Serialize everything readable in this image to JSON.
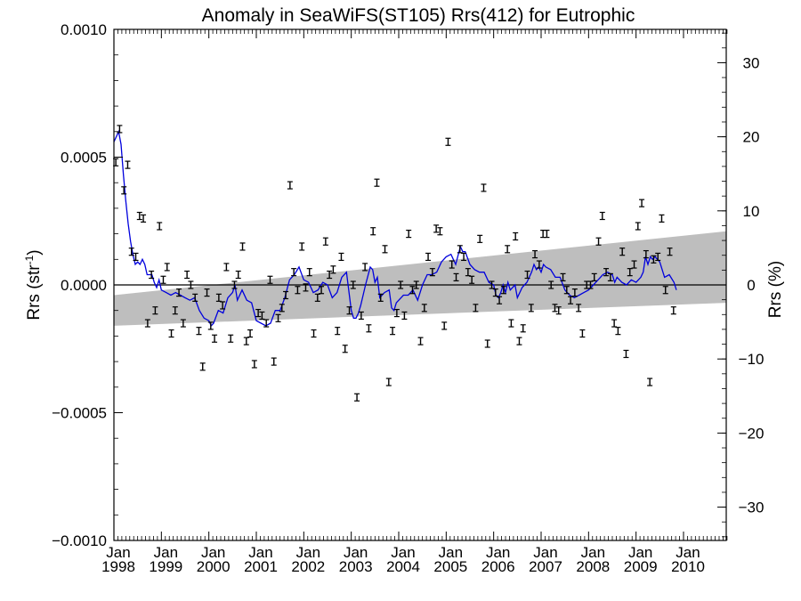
{
  "chart_data": {
    "type": "scatter",
    "title": "Anomaly in SeaWiFS(ST105) Rrs(412) for Eutrophic",
    "ylabel_left_main": "Rrs (str",
    "ylabel_left_sup": "-1",
    "ylabel_left_end": ")",
    "ylabel_right": "Rrs (%)",
    "xlim": [
      1998.0,
      2010.9
    ],
    "ylim": [
      -0.001,
      0.001
    ],
    "y2lim": [
      -34.5,
      34.5
    ],
    "yticks": [
      {
        "value": 0.001,
        "label": "0.0010"
      },
      {
        "value": 0.0005,
        "label": "0.0005"
      },
      {
        "value": 0.0,
        "label": "0.0000"
      },
      {
        "value": -0.0005,
        "label": "−0.0005"
      },
      {
        "value": -0.001,
        "label": "−0.0010"
      }
    ],
    "y2ticks": [
      {
        "value": 30,
        "label": "30"
      },
      {
        "value": 20,
        "label": "20"
      },
      {
        "value": 10,
        "label": "10"
      },
      {
        "value": 0,
        "label": "0"
      },
      {
        "value": -10,
        "label": "−10"
      },
      {
        "value": -20,
        "label": "−20"
      },
      {
        "value": -30,
        "label": "−30"
      }
    ],
    "xticks": [
      {
        "value": 1998,
        "month": "Jan",
        "year": "1998"
      },
      {
        "value": 1999,
        "month": "Jan",
        "year": "1999"
      },
      {
        "value": 2000,
        "month": "Jan",
        "year": "2000"
      },
      {
        "value": 2001,
        "month": "Jan",
        "year": "2001"
      },
      {
        "value": 2002,
        "month": "Jan",
        "year": "2002"
      },
      {
        "value": 2003,
        "month": "Jan",
        "year": "2003"
      },
      {
        "value": 2004,
        "month": "Jan",
        "year": "2004"
      },
      {
        "value": 2005,
        "month": "Jan",
        "year": "2005"
      },
      {
        "value": 2006,
        "month": "Jan",
        "year": "2006"
      },
      {
        "value": 2007,
        "month": "Jan",
        "year": "2007"
      },
      {
        "value": 2008,
        "month": "Jan",
        "year": "2008"
      },
      {
        "value": 2009,
        "month": "Jan",
        "year": "2009"
      },
      {
        "value": 2010,
        "month": "Jan",
        "year": "2010"
      }
    ],
    "trend_band": {
      "start": {
        "x": 1998.0,
        "upper": -4e-05,
        "lower": -0.00016
      },
      "end": {
        "x": 2010.9,
        "upper": 0.00021,
        "lower": -7e-05
      }
    },
    "zero_line": 0.0,
    "monthly_anomalies": [
      [
        1998.04,
        0.00048
      ],
      [
        1998.12,
        0.00061
      ],
      [
        1998.21,
        0.00037
      ],
      [
        1998.29,
        0.00047
      ],
      [
        1998.37,
        0.00013
      ],
      [
        1998.46,
        0.00011
      ],
      [
        1998.54,
        0.00027
      ],
      [
        1998.62,
        0.00026
      ],
      [
        1998.71,
        -0.00015
      ],
      [
        1998.79,
        4e-05
      ],
      [
        1998.87,
        -0.0001
      ],
      [
        1998.96,
        0.00023
      ],
      [
        1999.04,
        2e-05
      ],
      [
        1999.12,
        7e-05
      ],
      [
        1999.21,
        -0.00019
      ],
      [
        1999.29,
        -0.0001
      ],
      [
        1999.37,
        -3e-05
      ],
      [
        1999.46,
        -0.00015
      ],
      [
        1999.54,
        4e-05
      ],
      [
        1999.62,
        0.0
      ],
      [
        1999.71,
        -5e-05
      ],
      [
        1999.79,
        -0.00018
      ],
      [
        1999.87,
        -0.00032
      ],
      [
        1999.96,
        -3e-05
      ],
      [
        2000.04,
        -0.00016
      ],
      [
        2000.12,
        -0.00021
      ],
      [
        2000.21,
        -5e-05
      ],
      [
        2000.29,
        -8e-05
      ],
      [
        2000.37,
        7e-05
      ],
      [
        2000.46,
        -0.00021
      ],
      [
        2000.54,
        0.0
      ],
      [
        2000.62,
        4e-05
      ],
      [
        2000.71,
        0.00015
      ],
      [
        2000.79,
        -0.00022
      ],
      [
        2000.87,
        -0.00019
      ],
      [
        2000.96,
        -0.00031
      ],
      [
        2001.04,
        -0.00011
      ],
      [
        2001.12,
        -0.00012
      ],
      [
        2001.21,
        -0.00015
      ],
      [
        2001.29,
        2e-05
      ],
      [
        2001.37,
        -0.0003
      ],
      [
        2001.46,
        -0.00013
      ],
      [
        2001.54,
        -9e-05
      ],
      [
        2001.62,
        -4e-05
      ],
      [
        2001.71,
        0.00039
      ],
      [
        2001.79,
        5e-05
      ],
      [
        2001.87,
        -2e-05
      ],
      [
        2001.96,
        0.00015
      ],
      [
        2002.04,
        -1e-05
      ],
      [
        2002.12,
        5e-05
      ],
      [
        2002.21,
        -0.00019
      ],
      [
        2002.29,
        -5e-05
      ],
      [
        2002.37,
        -2e-05
      ],
      [
        2002.46,
        0.00017
      ],
      [
        2002.54,
        4e-05
      ],
      [
        2002.62,
        6e-05
      ],
      [
        2002.71,
        -0.00018
      ],
      [
        2002.79,
        0.00011
      ],
      [
        2002.87,
        -0.00025
      ],
      [
        2002.96,
        -0.0001
      ],
      [
        2003.04,
        0.0
      ],
      [
        2003.12,
        -0.00044
      ],
      [
        2003.21,
        -0.00012
      ],
      [
        2003.29,
        7e-05
      ],
      [
        2003.37,
        -0.00017
      ],
      [
        2003.46,
        0.00021
      ],
      [
        2003.54,
        0.0004
      ],
      [
        2003.62,
        -5e-05
      ],
      [
        2003.71,
        0.00014
      ],
      [
        2003.79,
        -0.00038
      ],
      [
        2003.87,
        -0.00018
      ],
      [
        2003.96,
        -0.00011
      ],
      [
        2004.04,
        0.0
      ],
      [
        2004.12,
        -0.00012
      ],
      [
        2004.21,
        0.0002
      ],
      [
        2004.29,
        -2e-05
      ],
      [
        2004.37,
        0.0
      ],
      [
        2004.46,
        -0.00022
      ],
      [
        2004.54,
        -9e-05
      ],
      [
        2004.62,
        0.00011
      ],
      [
        2004.71,
        5e-05
      ],
      [
        2004.79,
        0.00022
      ],
      [
        2004.87,
        0.00021
      ],
      [
        2004.96,
        -0.00016
      ],
      [
        2005.04,
        0.00056
      ],
      [
        2005.12,
        8e-05
      ],
      [
        2005.21,
        3e-05
      ],
      [
        2005.29,
        0.00014
      ],
      [
        2005.37,
        0.00011
      ],
      [
        2005.46,
        5e-05
      ],
      [
        2005.54,
        2e-05
      ],
      [
        2005.62,
        -9e-05
      ],
      [
        2005.71,
        0.00018
      ],
      [
        2005.79,
        0.00038
      ],
      [
        2005.87,
        -0.00023
      ],
      [
        2005.96,
        0.0
      ],
      [
        2006.04,
        -3e-05
      ],
      [
        2006.12,
        -6e-05
      ],
      [
        2006.21,
        -2e-05
      ],
      [
        2006.29,
        0.00014
      ],
      [
        2006.37,
        -0.00015
      ],
      [
        2006.46,
        0.00019
      ],
      [
        2006.54,
        -0.00022
      ],
      [
        2006.62,
        -0.00017
      ],
      [
        2006.71,
        4e-05
      ],
      [
        2006.79,
        -9e-05
      ],
      [
        2006.87,
        0.00012
      ],
      [
        2006.96,
        8e-05
      ],
      [
        2007.04,
        0.0002
      ],
      [
        2007.12,
        0.0002
      ],
      [
        2007.21,
        0.0
      ],
      [
        2007.29,
        -9e-05
      ],
      [
        2007.37,
        -0.0001
      ],
      [
        2007.46,
        3e-05
      ],
      [
        2007.54,
        -2e-05
      ],
      [
        2007.62,
        -6e-05
      ],
      [
        2007.71,
        -3e-05
      ],
      [
        2007.79,
        -9e-05
      ],
      [
        2007.87,
        -0.00019
      ],
      [
        2007.96,
        0.0
      ],
      [
        2008.04,
        0.0
      ],
      [
        2008.12,
        3e-05
      ],
      [
        2008.21,
        0.00017
      ],
      [
        2008.29,
        0.00027
      ],
      [
        2008.37,
        5e-05
      ],
      [
        2008.46,
        3e-05
      ],
      [
        2008.54,
        -0.00015
      ],
      [
        2008.62,
        -0.00018
      ],
      [
        2008.71,
        0.00013
      ],
      [
        2008.79,
        -0.00027
      ],
      [
        2008.87,
        5e-05
      ],
      [
        2008.96,
        8e-05
      ],
      [
        2009.04,
        0.00023
      ],
      [
        2009.12,
        0.00032
      ],
      [
        2009.21,
        0.00012
      ],
      [
        2009.29,
        -0.00038
      ],
      [
        2009.37,
        0.0001
      ],
      [
        2009.46,
        0.00011
      ],
      [
        2009.54,
        0.00026
      ],
      [
        2009.62,
        -2e-05
      ],
      [
        2009.71,
        0.00013
      ],
      [
        2009.79,
        -0.0001
      ]
    ],
    "running_mean": [
      [
        1998.0,
        0.00056
      ],
      [
        1998.05,
        0.00058
      ],
      [
        1998.1,
        0.0006
      ],
      [
        1998.15,
        0.00055
      ],
      [
        1998.2,
        0.00043
      ],
      [
        1998.25,
        0.00033
      ],
      [
        1998.3,
        0.00024
      ],
      [
        1998.35,
        0.00017
      ],
      [
        1998.4,
        0.00012
      ],
      [
        1998.45,
        8e-05
      ],
      [
        1998.5,
        9e-05
      ],
      [
        1998.55,
        8e-05
      ],
      [
        1998.6,
        0.0001
      ],
      [
        1998.65,
        8e-05
      ],
      [
        1998.7,
        4e-05
      ],
      [
        1998.75,
        4e-05
      ],
      [
        1998.8,
        4e-05
      ],
      [
        1998.85,
        1e-05
      ],
      [
        1998.9,
        -1e-05
      ],
      [
        1998.95,
        2e-05
      ],
      [
        1999.0,
        -2e-05
      ],
      [
        1999.1,
        -3e-05
      ],
      [
        1999.2,
        -4e-05
      ],
      [
        1999.3,
        -3e-05
      ],
      [
        1999.4,
        -4e-05
      ],
      [
        1999.5,
        -5e-05
      ],
      [
        1999.6,
        -6e-05
      ],
      [
        1999.7,
        -5e-05
      ],
      [
        1999.8,
        -0.0001
      ],
      [
        1999.9,
        -0.00013
      ],
      [
        2000.0,
        -0.00014
      ],
      [
        2000.05,
        -0.00016
      ],
      [
        2000.1,
        -0.00015
      ],
      [
        2000.2,
        -0.0001
      ],
      [
        2000.3,
        -0.00011
      ],
      [
        2000.4,
        -5e-05
      ],
      [
        2000.5,
        -3e-05
      ],
      [
        2000.55,
        0.0
      ],
      [
        2000.6,
        -6e-05
      ],
      [
        2000.7,
        -2e-05
      ],
      [
        2000.8,
        -6e-05
      ],
      [
        2000.9,
        -7e-05
      ],
      [
        2001.0,
        -0.00014
      ],
      [
        2001.1,
        -0.00015
      ],
      [
        2001.2,
        -0.00016
      ],
      [
        2001.3,
        -0.00015
      ],
      [
        2001.4,
        -0.0001
      ],
      [
        2001.5,
        -0.0001
      ],
      [
        2001.6,
        -5e-05
      ],
      [
        2001.7,
        2e-05
      ],
      [
        2001.8,
        4e-05
      ],
      [
        2001.9,
        7e-05
      ],
      [
        2002.0,
        2e-05
      ],
      [
        2002.1,
        1e-05
      ],
      [
        2002.2,
        -3e-05
      ],
      [
        2002.3,
        -2e-05
      ],
      [
        2002.4,
        1e-05
      ],
      [
        2002.5,
        0.0
      ],
      [
        2002.6,
        -5e-05
      ],
      [
        2002.7,
        -3e-05
      ],
      [
        2002.8,
        3e-05
      ],
      [
        2002.9,
        5e-05
      ],
      [
        2003.0,
        -0.0001
      ],
      [
        2003.05,
        -0.00013
      ],
      [
        2003.1,
        -0.00013
      ],
      [
        2003.15,
        -0.00011
      ],
      [
        2003.2,
        -8e-05
      ],
      [
        2003.3,
        0.0
      ],
      [
        2003.4,
        7e-05
      ],
      [
        2003.45,
        6e-05
      ],
      [
        2003.5,
        1e-05
      ],
      [
        2003.55,
        3e-05
      ],
      [
        2003.6,
        -5e-05
      ],
      [
        2003.7,
        -3e-05
      ],
      [
        2003.8,
        -2e-05
      ],
      [
        2003.85,
        -9e-05
      ],
      [
        2003.9,
        -0.0001
      ],
      [
        2003.95,
        -7e-05
      ],
      [
        2004.0,
        -6e-05
      ],
      [
        2004.1,
        -4e-05
      ],
      [
        2004.2,
        -4e-05
      ],
      [
        2004.3,
        -2e-05
      ],
      [
        2004.4,
        -6e-05
      ],
      [
        2004.5,
        0.0
      ],
      [
        2004.6,
        4e-05
      ],
      [
        2004.7,
        4e-05
      ],
      [
        2004.8,
        5e-05
      ],
      [
        2004.9,
        9e-05
      ],
      [
        2005.0,
        0.00011
      ],
      [
        2005.1,
        0.00012
      ],
      [
        2005.2,
        8e-05
      ],
      [
        2005.3,
        0.00015
      ],
      [
        2005.35,
        0.00013
      ],
      [
        2005.4,
        0.00013
      ],
      [
        2005.5,
        8e-05
      ],
      [
        2005.6,
        6e-05
      ],
      [
        2005.7,
        5e-05
      ],
      [
        2005.8,
        5e-05
      ],
      [
        2005.9,
        1e-05
      ],
      [
        2006.0,
        0.0
      ],
      [
        2006.05,
        -4e-05
      ],
      [
        2006.1,
        -5e-05
      ],
      [
        2006.15,
        -3e-05
      ],
      [
        2006.2,
        0.0
      ],
      [
        2006.25,
        -3e-05
      ],
      [
        2006.3,
        1e-05
      ],
      [
        2006.35,
        -2e-05
      ],
      [
        2006.45,
        0.0
      ],
      [
        2006.5,
        -5e-05
      ],
      [
        2006.6,
        -1e-05
      ],
      [
        2006.7,
        1e-05
      ],
      [
        2006.8,
        5e-05
      ],
      [
        2006.85,
        8e-05
      ],
      [
        2006.9,
        6e-05
      ],
      [
        2006.95,
        7e-05
      ],
      [
        2007.0,
        5e-05
      ],
      [
        2007.05,
        8e-05
      ],
      [
        2007.1,
        7e-05
      ],
      [
        2007.2,
        6e-05
      ],
      [
        2007.3,
        3e-05
      ],
      [
        2007.4,
        3e-05
      ],
      [
        2007.5,
        -2e-05
      ],
      [
        2007.6,
        -4e-05
      ],
      [
        2007.7,
        -5e-05
      ],
      [
        2007.8,
        -4e-05
      ],
      [
        2007.9,
        -3e-05
      ],
      [
        2008.0,
        -2e-05
      ],
      [
        2008.1,
        0.0
      ],
      [
        2008.2,
        2e-05
      ],
      [
        2008.3,
        4e-05
      ],
      [
        2008.4,
        5e-05
      ],
      [
        2008.5,
        4e-05
      ],
      [
        2008.55,
        1e-05
      ],
      [
        2008.6,
        3e-05
      ],
      [
        2008.7,
        1e-05
      ],
      [
        2008.8,
        0.0
      ],
      [
        2008.9,
        2e-05
      ],
      [
        2009.0,
        1e-05
      ],
      [
        2009.1,
        3e-05
      ],
      [
        2009.15,
        5e-05
      ],
      [
        2009.2,
        0.00011
      ],
      [
        2009.25,
        8e-05
      ],
      [
        2009.3,
        0.00011
      ],
      [
        2009.35,
        0.0001
      ],
      [
        2009.4,
        0.00011
      ],
      [
        2009.5,
        9e-05
      ],
      [
        2009.6,
        3e-05
      ],
      [
        2009.7,
        4e-05
      ],
      [
        2009.8,
        1e-05
      ],
      [
        2009.85,
        -2e-05
      ]
    ]
  }
}
